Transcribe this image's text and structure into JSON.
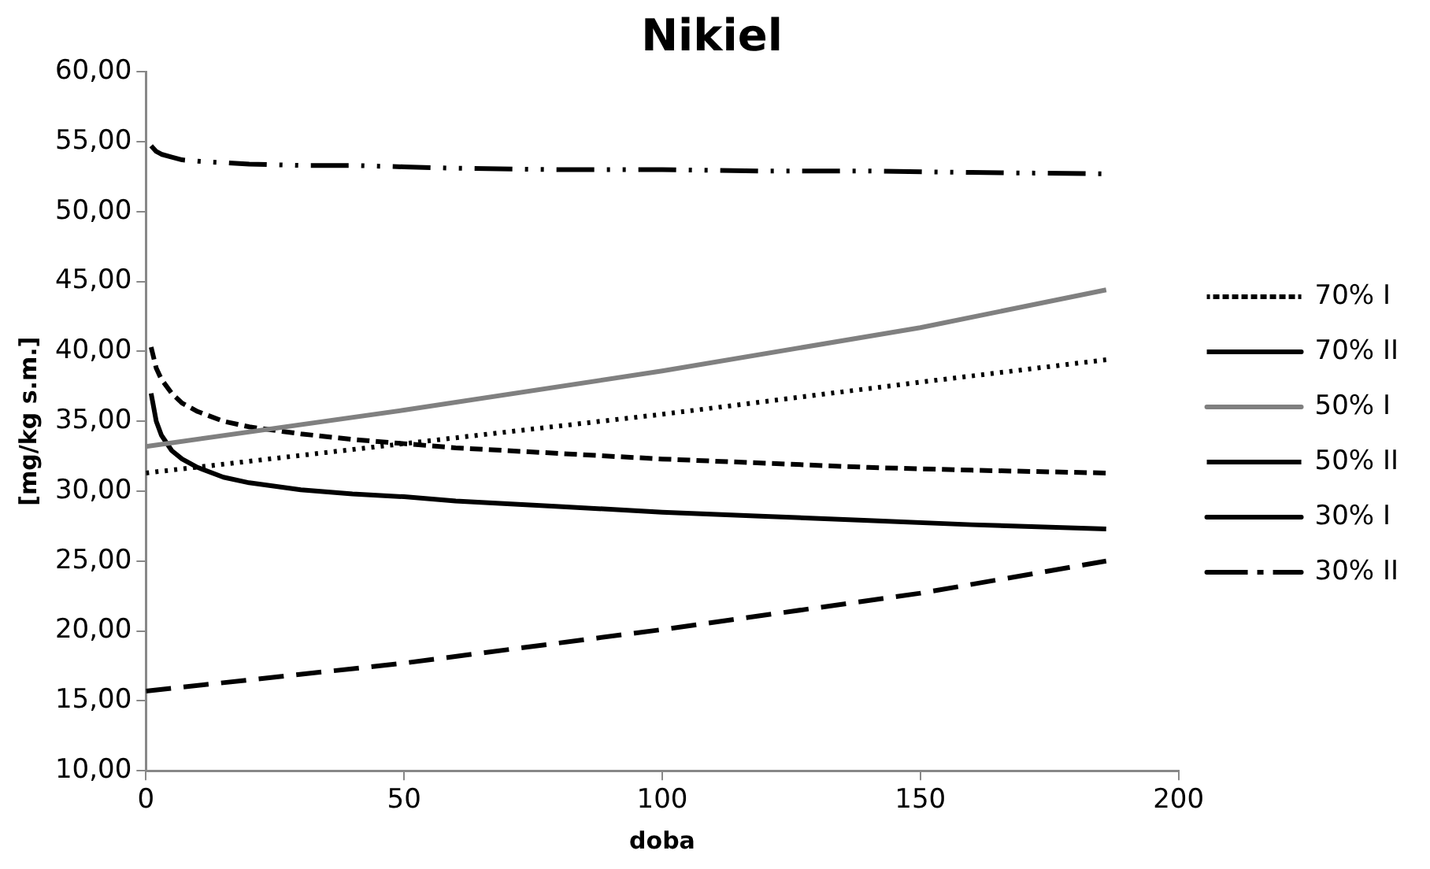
{
  "chart_data": {
    "type": "line",
    "title": "Nikiel",
    "xlabel": "doba",
    "ylabel": "[mg/kg s.m.]",
    "xlim": [
      0,
      200
    ],
    "xticks": [
      0,
      50,
      100,
      150,
      200
    ],
    "ylim": [
      10,
      60
    ],
    "yticks": [
      {
        "value": 10,
        "label": "10,00"
      },
      {
        "value": 15,
        "label": "15,00"
      },
      {
        "value": 20,
        "label": "20,00"
      },
      {
        "value": 25,
        "label": "25,00"
      },
      {
        "value": 30,
        "label": "30,00"
      },
      {
        "value": 35,
        "label": "35,00"
      },
      {
        "value": 40,
        "label": "40,00"
      },
      {
        "value": 45,
        "label": "45,00"
      },
      {
        "value": 50,
        "label": "50,00"
      },
      {
        "value": 55,
        "label": "55,00"
      },
      {
        "value": 60,
        "label": "60,00"
      }
    ],
    "grid": false,
    "legend": "right",
    "series": [
      {
        "name": "70% I",
        "color": "#000000",
        "line_style": "dotted",
        "x": [
          0,
          50,
          100,
          150,
          186
        ],
        "values": [
          31.3,
          33.4,
          35.5,
          37.8,
          39.4
        ]
      },
      {
        "name": "70% II",
        "color": "#000000",
        "line_style": "longdash",
        "x": [
          0,
          50,
          100,
          150,
          186
        ],
        "values": [
          15.7,
          17.7,
          20.1,
          22.7,
          25.0
        ]
      },
      {
        "name": "50% I",
        "color": "#808080",
        "line_style": "solid",
        "x": [
          0,
          50,
          100,
          150,
          186
        ],
        "values": [
          33.2,
          35.8,
          38.6,
          41.7,
          44.4
        ]
      },
      {
        "name": "50% II",
        "color": "#000000",
        "line_style": "dashed",
        "x": [
          1,
          2,
          3,
          5,
          7,
          10,
          15,
          20,
          30,
          40,
          50,
          60,
          80,
          100,
          120,
          140,
          160,
          186
        ],
        "values": [
          40.3,
          38.8,
          38.0,
          37.0,
          36.3,
          35.7,
          35.0,
          34.6,
          34.1,
          33.7,
          33.4,
          33.1,
          32.7,
          32.3,
          32.0,
          31.7,
          31.5,
          31.3
        ]
      },
      {
        "name": "30% I",
        "color": "#000000",
        "line_style": "solid",
        "x": [
          1,
          2,
          3,
          5,
          7,
          10,
          15,
          20,
          30,
          40,
          50,
          60,
          80,
          100,
          120,
          140,
          160,
          186
        ],
        "values": [
          37.0,
          35.0,
          34.0,
          32.9,
          32.3,
          31.7,
          31.0,
          30.6,
          30.1,
          29.8,
          29.6,
          29.3,
          28.9,
          28.5,
          28.2,
          27.9,
          27.6,
          27.3
        ]
      },
      {
        "name": "30% II",
        "color": "#000000",
        "line_style": "dashdotdot",
        "x": [
          1,
          2,
          3,
          5,
          7,
          10,
          15,
          20,
          30,
          40,
          50,
          60,
          80,
          100,
          120,
          140,
          160,
          186
        ],
        "values": [
          54.7,
          54.3,
          54.1,
          53.9,
          53.7,
          53.6,
          53.5,
          53.4,
          53.3,
          53.3,
          53.2,
          53.1,
          53.0,
          53.0,
          52.9,
          52.9,
          52.8,
          52.7
        ]
      }
    ]
  }
}
